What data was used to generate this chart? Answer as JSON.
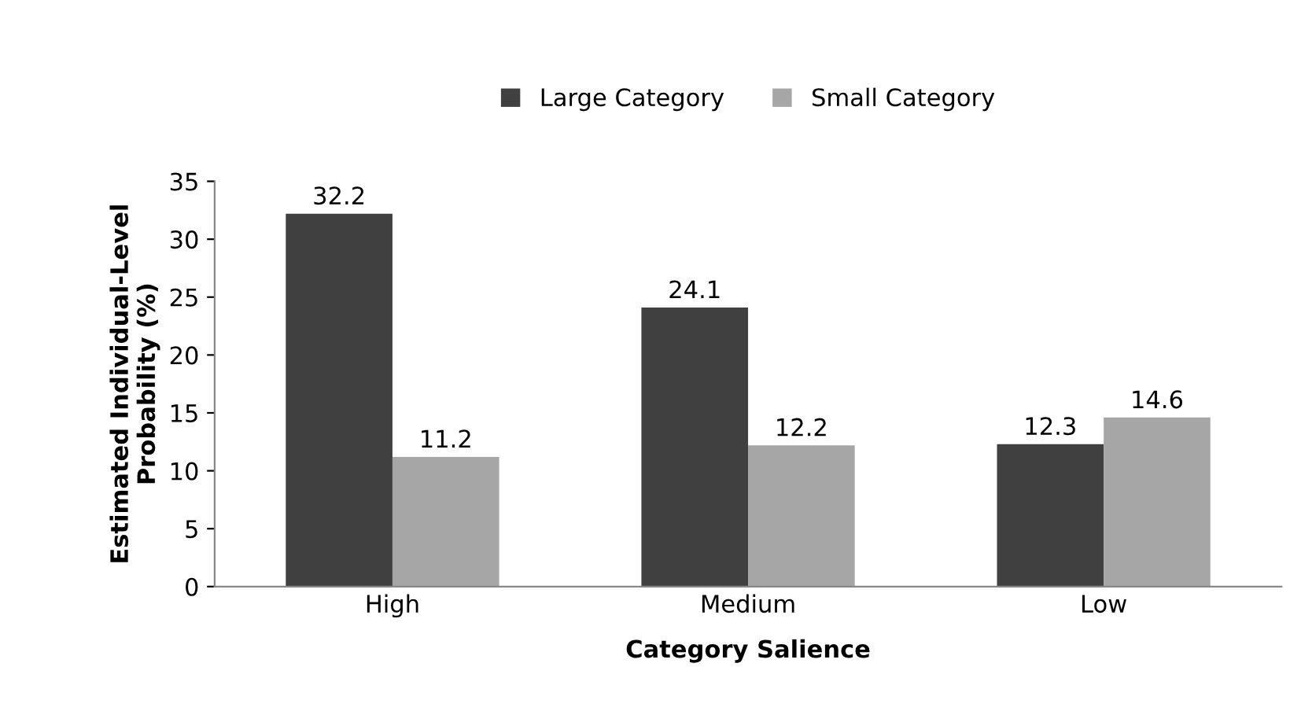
{
  "chart_data": {
    "type": "bar",
    "xlabel": "Category Salience",
    "ylabel": "Estimated Individual-Level\nProbability (%)",
    "categories": [
      "High",
      "Medium",
      "Low"
    ],
    "series": [
      {
        "name": "Large Category",
        "color": "#404040",
        "values": [
          32.2,
          24.1,
          12.3
        ]
      },
      {
        "name": "Small Category",
        "color": "#a6a6a6",
        "values": [
          11.2,
          12.2,
          14.6
        ]
      }
    ],
    "ylim": [
      0,
      35
    ],
    "yticks": [
      0,
      5,
      10,
      15,
      20,
      25,
      30,
      35
    ],
    "grid": false,
    "legend": "top",
    "data_labels": true
  }
}
